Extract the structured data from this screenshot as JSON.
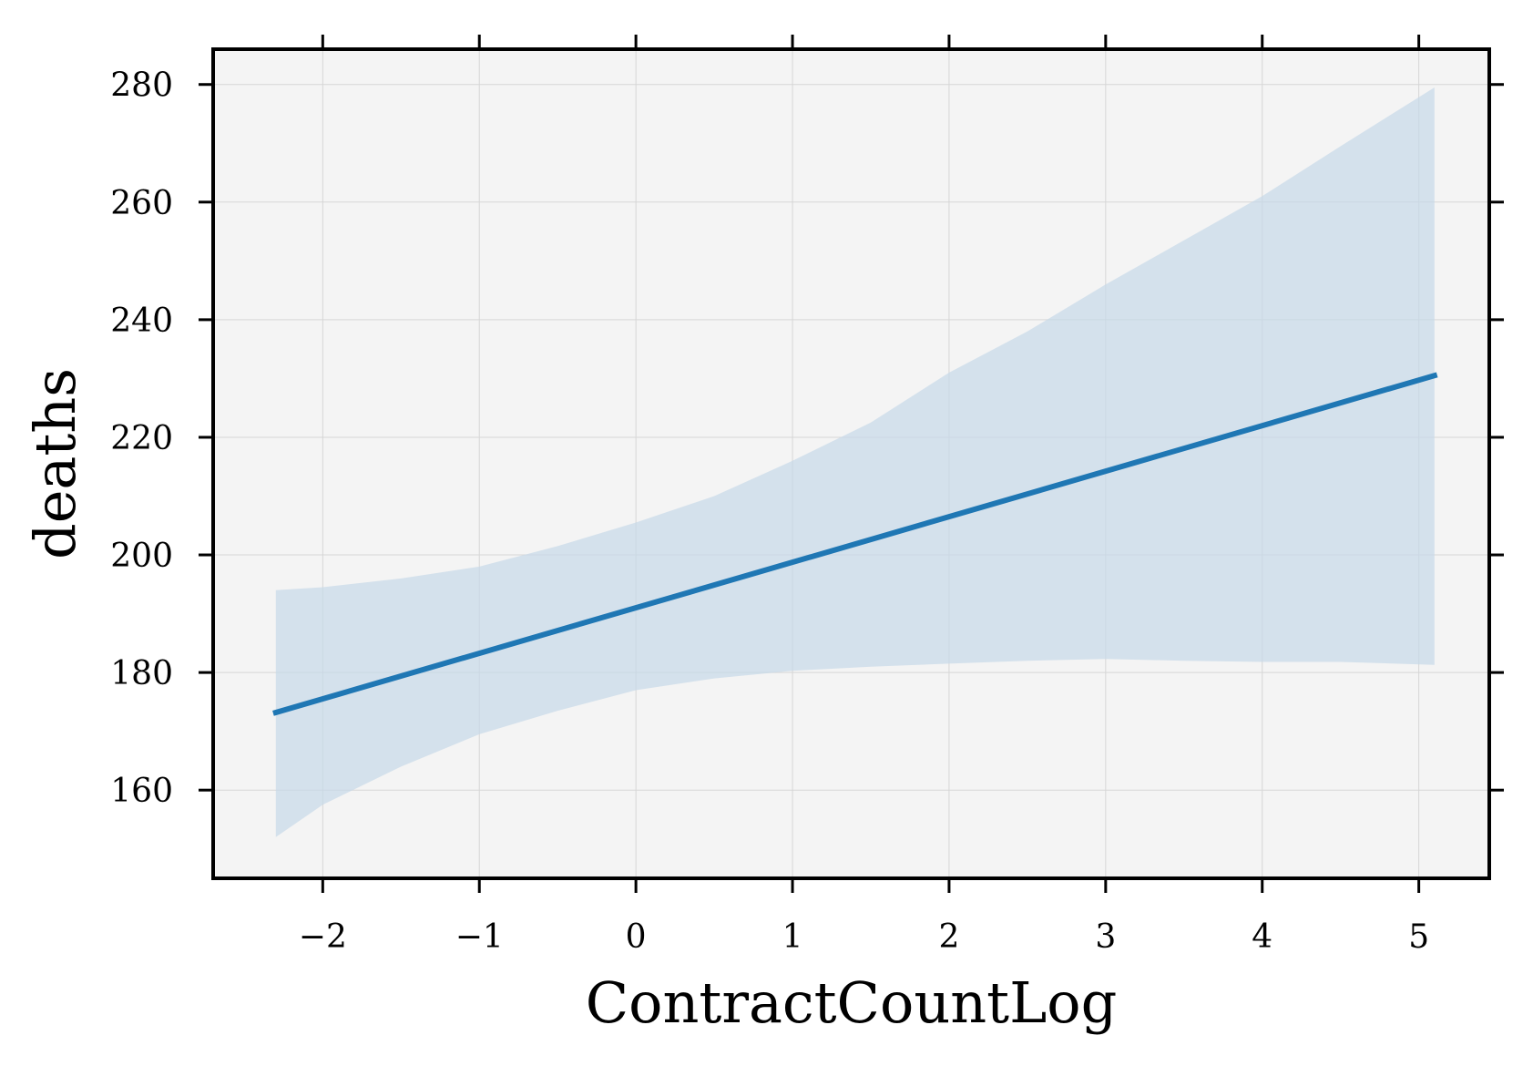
{
  "chart_data": {
    "type": "line",
    "title": "",
    "xlabel": "ContractCountLog",
    "ylabel": "deaths",
    "xlim": [
      -2.7,
      5.45
    ],
    "ylim": [
      145,
      286
    ],
    "xticks": [
      -2,
      -1,
      0,
      1,
      2,
      3,
      4,
      5
    ],
    "xtick_labels": [
      "−2",
      "−1",
      "0",
      "1",
      "2",
      "3",
      "4",
      "5"
    ],
    "yticks": [
      160,
      180,
      200,
      220,
      240,
      260,
      280
    ],
    "ytick_labels": [
      "160",
      "180",
      "200",
      "220",
      "240",
      "260",
      "280"
    ],
    "grid": true,
    "legend": "none",
    "colors": {
      "line": "#1f77b4",
      "band": "#c6d8e8",
      "plot_background": "#f4f4f4",
      "grid": "#d6d6d6",
      "frame": "#000000"
    },
    "series": [
      {
        "x": [
          -2.3,
          5.1
        ],
        "y": [
          173.2,
          230.5
        ]
      }
    ],
    "confidence_band": {
      "x": [
        -2.3,
        -2.0,
        -1.5,
        -1.0,
        -0.5,
        0.0,
        0.5,
        1.0,
        1.5,
        2.0,
        2.5,
        3.0,
        3.5,
        4.0,
        4.5,
        5.1
      ],
      "lower": [
        152.0,
        157.5,
        164.0,
        169.5,
        173.5,
        177.0,
        179.0,
        180.3,
        181.0,
        181.5,
        182.0,
        182.3,
        182.0,
        181.8,
        181.8,
        181.3
      ],
      "upper": [
        194.0,
        194.5,
        196.0,
        198.0,
        201.5,
        205.5,
        210.0,
        216.0,
        222.5,
        231.0,
        238.0,
        246.0,
        253.5,
        261.0,
        269.5,
        279.5
      ]
    }
  }
}
